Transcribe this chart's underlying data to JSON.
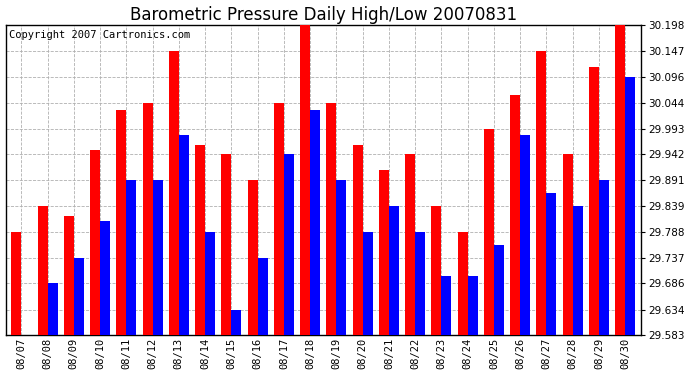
{
  "title": "Barometric Pressure Daily High/Low 20070831",
  "copyright": "Copyright 2007 Cartronics.com",
  "categories": [
    "08/07",
    "08/08",
    "08/09",
    "08/10",
    "08/11",
    "08/12",
    "08/13",
    "08/14",
    "08/15",
    "08/16",
    "08/17",
    "08/18",
    "08/19",
    "08/20",
    "08/21",
    "08/22",
    "08/23",
    "08/24",
    "08/25",
    "08/26",
    "08/27",
    "08/28",
    "08/29",
    "08/30"
  ],
  "highs": [
    29.788,
    29.839,
    29.82,
    29.95,
    30.03,
    30.044,
    30.147,
    29.96,
    29.942,
    29.891,
    30.044,
    30.198,
    30.044,
    29.96,
    29.91,
    29.942,
    29.839,
    29.788,
    29.993,
    30.06,
    30.147,
    29.942,
    30.115,
    30.198
  ],
  "lows": [
    29.583,
    29.686,
    29.737,
    29.81,
    29.891,
    29.891,
    29.98,
    29.788,
    29.634,
    29.737,
    29.942,
    30.03,
    29.891,
    29.788,
    29.839,
    29.788,
    29.7,
    29.7,
    29.762,
    29.98,
    29.866,
    29.839,
    29.891,
    30.096
  ],
  "high_color": "#ff0000",
  "low_color": "#0000ff",
  "background_color": "#ffffff",
  "grid_color": "#b0b0b0",
  "ylim_min": 29.583,
  "ylim_max": 30.198,
  "yticks": [
    29.583,
    29.634,
    29.686,
    29.737,
    29.788,
    29.839,
    29.891,
    29.942,
    29.993,
    30.044,
    30.096,
    30.147,
    30.198
  ],
  "title_fontsize": 12,
  "tick_fontsize": 7.5,
  "copyright_fontsize": 7.5
}
